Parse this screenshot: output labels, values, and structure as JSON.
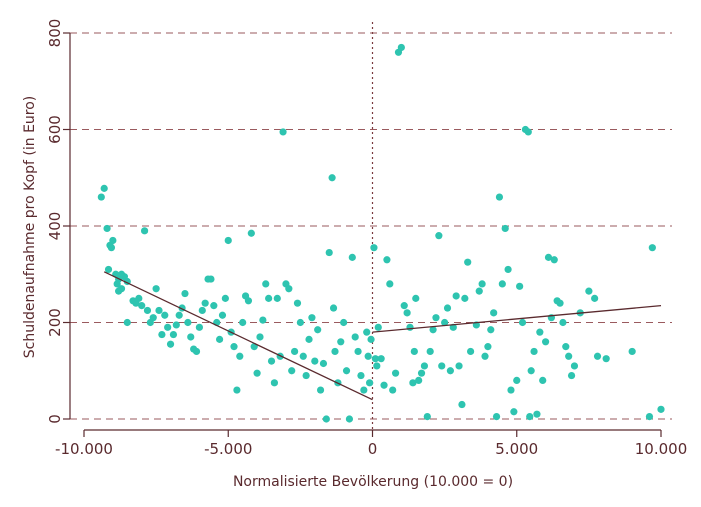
{
  "chart_data": {
    "type": "scatter",
    "xlabel": "Normalisierte Bevölkerung (10.000 = 0)",
    "ylabel": "Schuldenaufnahme pro Kopf (in Euro)",
    "xlim": [
      -10000,
      10000
    ],
    "ylim": [
      0,
      800
    ],
    "x_ticks": [
      -10000,
      -5000,
      0,
      5000,
      10000
    ],
    "x_tick_labels": [
      "-10.000",
      "-5.000",
      "0",
      "5.000",
      "10.000"
    ],
    "y_ticks": [
      0,
      200,
      400,
      600,
      800
    ],
    "y_tick_labels": [
      "0",
      "200",
      "400",
      "600",
      "800"
    ],
    "grid": "horizontal dashed",
    "cutoff_x": 0,
    "colors": {
      "points": "#2ec4b0",
      "axis": "#5a2a2e",
      "grid": "#9a5a5e",
      "fit_line": "#5a2a2e"
    },
    "fit_lines": [
      {
        "x": [
          -9300,
          0
        ],
        "y": [
          305,
          40
        ]
      },
      {
        "x": [
          0,
          10000
        ],
        "y": [
          180,
          235
        ]
      }
    ],
    "points": [
      [
        -9400,
        460
      ],
      [
        -9300,
        478
      ],
      [
        -9100,
        360
      ],
      [
        -9200,
        395
      ],
      [
        -9000,
        370
      ],
      [
        -9050,
        355
      ],
      [
        -9150,
        310
      ],
      [
        -8900,
        300
      ],
      [
        -8850,
        280
      ],
      [
        -8800,
        290
      ],
      [
        -8700,
        300
      ],
      [
        -8600,
        295
      ],
      [
        -8500,
        285
      ],
      [
        -8800,
        265
      ],
      [
        -8700,
        270
      ],
      [
        -8500,
        200
      ],
      [
        -8300,
        245
      ],
      [
        -8200,
        240
      ],
      [
        -8100,
        250
      ],
      [
        -8000,
        235
      ],
      [
        -7900,
        390
      ],
      [
        -7800,
        225
      ],
      [
        -7700,
        200
      ],
      [
        -7600,
        210
      ],
      [
        -7500,
        270
      ],
      [
        -7400,
        225
      ],
      [
        -7300,
        175
      ],
      [
        -7200,
        215
      ],
      [
        -7100,
        190
      ],
      [
        -7000,
        155
      ],
      [
        -6900,
        175
      ],
      [
        -6800,
        195
      ],
      [
        -6700,
        215
      ],
      [
        -6600,
        230
      ],
      [
        -6500,
        260
      ],
      [
        -6400,
        200
      ],
      [
        -6300,
        170
      ],
      [
        -6200,
        145
      ],
      [
        -6100,
        140
      ],
      [
        -6000,
        190
      ],
      [
        -5900,
        225
      ],
      [
        -5800,
        240
      ],
      [
        -5700,
        290
      ],
      [
        -5600,
        290
      ],
      [
        -5500,
        235
      ],
      [
        -5400,
        200
      ],
      [
        -5300,
        165
      ],
      [
        -5200,
        215
      ],
      [
        -5100,
        250
      ],
      [
        -5000,
        370
      ],
      [
        -4900,
        180
      ],
      [
        -4800,
        150
      ],
      [
        -4700,
        60
      ],
      [
        -4600,
        130
      ],
      [
        -4500,
        200
      ],
      [
        -4400,
        255
      ],
      [
        -4300,
        245
      ],
      [
        -4200,
        385
      ],
      [
        -4100,
        150
      ],
      [
        -4000,
        95
      ],
      [
        -3900,
        170
      ],
      [
        -3800,
        205
      ],
      [
        -3700,
        280
      ],
      [
        -3600,
        250
      ],
      [
        -3500,
        120
      ],
      [
        -3400,
        75
      ],
      [
        -3300,
        250
      ],
      [
        -3200,
        130
      ],
      [
        -3100,
        595
      ],
      [
        -3000,
        280
      ],
      [
        -2900,
        270
      ],
      [
        -2800,
        100
      ],
      [
        -2700,
        140
      ],
      [
        -2600,
        240
      ],
      [
        -2500,
        200
      ],
      [
        -2400,
        130
      ],
      [
        -2300,
        90
      ],
      [
        -2200,
        165
      ],
      [
        -2100,
        210
      ],
      [
        -2000,
        120
      ],
      [
        -1900,
        185
      ],
      [
        -1800,
        60
      ],
      [
        -1700,
        115
      ],
      [
        -1600,
        0
      ],
      [
        -1500,
        345
      ],
      [
        -1400,
        500
      ],
      [
        -1350,
        230
      ],
      [
        -1300,
        140
      ],
      [
        -1200,
        75
      ],
      [
        -1100,
        160
      ],
      [
        -1000,
        200
      ],
      [
        -900,
        100
      ],
      [
        -800,
        0
      ],
      [
        -700,
        335
      ],
      [
        -600,
        170
      ],
      [
        -500,
        140
      ],
      [
        -400,
        90
      ],
      [
        -300,
        60
      ],
      [
        -200,
        180
      ],
      [
        -150,
        130
      ],
      [
        -100,
        75
      ],
      [
        -50,
        165
      ],
      [
        50,
        355
      ],
      [
        100,
        125
      ],
      [
        150,
        110
      ],
      [
        200,
        190
      ],
      [
        300,
        125
      ],
      [
        400,
        70
      ],
      [
        500,
        330
      ],
      [
        600,
        280
      ],
      [
        700,
        60
      ],
      [
        800,
        95
      ],
      [
        900,
        760
      ],
      [
        1000,
        770
      ],
      [
        1100,
        235
      ],
      [
        1200,
        220
      ],
      [
        1300,
        190
      ],
      [
        1400,
        75
      ],
      [
        1450,
        140
      ],
      [
        1500,
        250
      ],
      [
        1600,
        80
      ],
      [
        1700,
        95
      ],
      [
        1800,
        110
      ],
      [
        1900,
        5
      ],
      [
        2000,
        140
      ],
      [
        2100,
        185
      ],
      [
        2200,
        210
      ],
      [
        2300,
        380
      ],
      [
        2400,
        110
      ],
      [
        2500,
        200
      ],
      [
        2600,
        230
      ],
      [
        2700,
        100
      ],
      [
        2800,
        190
      ],
      [
        2900,
        255
      ],
      [
        3000,
        110
      ],
      [
        3100,
        30
      ],
      [
        3200,
        250
      ],
      [
        3300,
        325
      ],
      [
        3400,
        140
      ],
      [
        3600,
        195
      ],
      [
        3700,
        265
      ],
      [
        3800,
        280
      ],
      [
        3900,
        130
      ],
      [
        4000,
        150
      ],
      [
        4100,
        185
      ],
      [
        4200,
        220
      ],
      [
        4300,
        5
      ],
      [
        4400,
        460
      ],
      [
        4500,
        280
      ],
      [
        4600,
        395
      ],
      [
        4700,
        310
      ],
      [
        4800,
        60
      ],
      [
        4900,
        15
      ],
      [
        5000,
        80
      ],
      [
        5100,
        275
      ],
      [
        5200,
        200
      ],
      [
        5300,
        600
      ],
      [
        5400,
        595
      ],
      [
        5450,
        5
      ],
      [
        5500,
        100
      ],
      [
        5600,
        140
      ],
      [
        5700,
        10
      ],
      [
        5800,
        180
      ],
      [
        5900,
        80
      ],
      [
        6000,
        160
      ],
      [
        6100,
        335
      ],
      [
        6200,
        210
      ],
      [
        6300,
        330
      ],
      [
        6400,
        245
      ],
      [
        6500,
        240
      ],
      [
        6600,
        200
      ],
      [
        6700,
        150
      ],
      [
        6800,
        130
      ],
      [
        6900,
        90
      ],
      [
        7000,
        110
      ],
      [
        7200,
        220
      ],
      [
        7500,
        265
      ],
      [
        7700,
        250
      ],
      [
        7800,
        130
      ],
      [
        8100,
        125
      ],
      [
        9000,
        140
      ],
      [
        9600,
        5
      ],
      [
        9700,
        355
      ],
      [
        10000,
        20
      ]
    ]
  }
}
